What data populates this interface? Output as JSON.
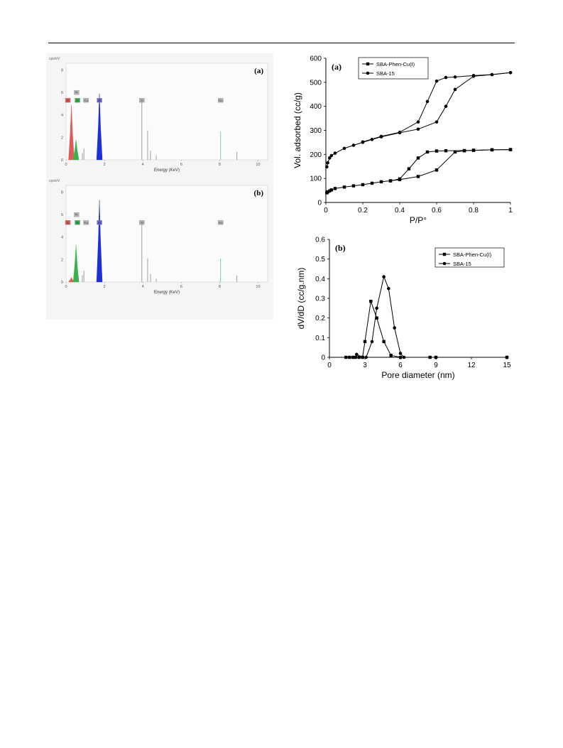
{
  "eds": [
    {
      "label": "(a)",
      "unit": "cps/eV",
      "yticks": [
        "0",
        "2",
        "4",
        "6",
        "8"
      ],
      "xticks": [
        "0",
        "2",
        "4",
        "6",
        "8",
        "10"
      ],
      "xlabel": "Energy (KeV)",
      "element_tags": [
        {
          "text": "C",
          "color": "#e05a5a",
          "energy": 0.28
        },
        {
          "text": "O",
          "color": "#37b24d",
          "energy": 0.52
        },
        {
          "text": "Cu",
          "color": "#bdbdbd",
          "energy": 0.93
        },
        {
          "text": "Si",
          "color": "#6b6bd6",
          "energy": 1.74
        },
        {
          "text": "N",
          "color": "#bdbdbd",
          "energy": 0.5
        },
        {
          "text": "Cl",
          "color": "#bdbdbd",
          "energy": 3.95
        },
        {
          "text": "Cu",
          "color": "#bdbdbd",
          "energy": 8.05
        }
      ],
      "peaks": [
        {
          "energy": 0.28,
          "height": 4.9,
          "color": "#e05a5a"
        },
        {
          "energy": 0.52,
          "height": 1.8,
          "color": "#37b24d"
        },
        {
          "energy": 1.74,
          "height": 5.9,
          "color": "#1f2fd6"
        },
        {
          "energy": 0.93,
          "height": 1.0,
          "color": "#888888"
        },
        {
          "energy": 0.85,
          "height": 0.6,
          "color": "#888888"
        },
        {
          "energy": 3.95,
          "height": 5.4,
          "color": "#888888"
        },
        {
          "energy": 4.25,
          "height": 2.6,
          "color": "#888888"
        },
        {
          "energy": 4.4,
          "height": 0.8,
          "color": "#888888"
        },
        {
          "energy": 4.7,
          "height": 0.4,
          "color": "#888888"
        },
        {
          "energy": 8.05,
          "height": 2.5,
          "color": "#48c9b0"
        },
        {
          "energy": 8.9,
          "height": 0.7,
          "color": "#888888"
        }
      ]
    },
    {
      "label": "(b)",
      "unit": "cps/eV",
      "yticks": [
        "0",
        "2",
        "4",
        "6",
        "8"
      ],
      "xticks": [
        "0",
        "2",
        "4",
        "6",
        "8",
        "10"
      ],
      "xlabel": "Energy (KeV)",
      "element_tags": [
        {
          "text": "C",
          "color": "#e05a5a",
          "energy": 0.28
        },
        {
          "text": "O",
          "color": "#37b24d",
          "energy": 0.52
        },
        {
          "text": "Cu",
          "color": "#bdbdbd",
          "energy": 0.93
        },
        {
          "text": "Si",
          "color": "#6b6bd6",
          "energy": 1.74
        },
        {
          "text": "N",
          "color": "#bdbdbd",
          "energy": 0.5
        },
        {
          "text": "Cl",
          "color": "#bdbdbd",
          "energy": 3.95
        },
        {
          "text": "Cu",
          "color": "#bdbdbd",
          "energy": 8.05
        }
      ],
      "peaks": [
        {
          "energy": 0.28,
          "height": 0.4,
          "color": "#e05a5a"
        },
        {
          "energy": 0.52,
          "height": 3.3,
          "color": "#37b24d"
        },
        {
          "energy": 1.74,
          "height": 7.3,
          "color": "#1f2fd6"
        },
        {
          "energy": 0.93,
          "height": 1.0,
          "color": "#888888"
        },
        {
          "energy": 0.85,
          "height": 0.6,
          "color": "#888888"
        },
        {
          "energy": 3.95,
          "height": 5.3,
          "color": "#888888"
        },
        {
          "energy": 4.25,
          "height": 2.1,
          "color": "#888888"
        },
        {
          "energy": 4.4,
          "height": 0.7,
          "color": "#888888"
        },
        {
          "energy": 4.7,
          "height": 0.3,
          "color": "#888888"
        },
        {
          "energy": 8.05,
          "height": 2.1,
          "color": "#48c9b0"
        },
        {
          "energy": 8.9,
          "height": 0.6,
          "color": "#888888"
        }
      ]
    }
  ],
  "chart_data": [
    {
      "type": "line",
      "label": "(a)",
      "xlabel": "P/P°",
      "ylabel": "Vol. adsorbed (cc/g)",
      "xlim": [
        0,
        1
      ],
      "ylim": [
        0,
        600
      ],
      "xticks": [
        "0",
        "0.2",
        "0.4",
        "0.6",
        "0.8",
        "1"
      ],
      "yticks": [
        "0",
        "100",
        "200",
        "300",
        "400",
        "500",
        "600"
      ],
      "legend_position": "top-left",
      "series": [
        {
          "name": "SBA-Phen-Cu(I)",
          "marker": "square",
          "adsorption": [
            [
              0.005,
              40
            ],
            [
              0.01,
              44
            ],
            [
              0.02,
              48
            ],
            [
              0.03,
              52
            ],
            [
              0.05,
              58
            ],
            [
              0.1,
              64
            ],
            [
              0.15,
              69
            ],
            [
              0.2,
              74
            ],
            [
              0.25,
              80
            ],
            [
              0.3,
              86
            ],
            [
              0.35,
              90
            ],
            [
              0.4,
              95
            ],
            [
              0.5,
              108
            ],
            [
              0.6,
              135
            ],
            [
              0.7,
              210
            ],
            [
              0.75,
              215
            ],
            [
              0.8,
              217
            ],
            [
              0.9,
              219
            ],
            [
              1.0,
              220
            ]
          ],
          "desorption": [
            [
              1.0,
              220
            ],
            [
              0.9,
              219
            ],
            [
              0.8,
              217
            ],
            [
              0.75,
              216
            ],
            [
              0.65,
              215
            ],
            [
              0.6,
              214
            ],
            [
              0.55,
              210
            ],
            [
              0.5,
              185
            ],
            [
              0.45,
              140
            ],
            [
              0.4,
              98
            ],
            [
              0.35,
              90
            ]
          ]
        },
        {
          "name": "SBA-15",
          "marker": "circle",
          "adsorption": [
            [
              0.005,
              148
            ],
            [
              0.01,
              165
            ],
            [
              0.02,
              185
            ],
            [
              0.03,
              195
            ],
            [
              0.05,
              205
            ],
            [
              0.1,
              225
            ],
            [
              0.15,
              238
            ],
            [
              0.2,
              250
            ],
            [
              0.25,
              262
            ],
            [
              0.3,
              273
            ],
            [
              0.4,
              290
            ],
            [
              0.5,
              305
            ],
            [
              0.6,
              335
            ],
            [
              0.65,
              400
            ],
            [
              0.7,
              470
            ],
            [
              0.8,
              525
            ],
            [
              0.9,
              532
            ],
            [
              1.0,
              540
            ]
          ],
          "desorption": [
            [
              1.0,
              540
            ],
            [
              0.9,
              532
            ],
            [
              0.8,
              528
            ],
            [
              0.7,
              522
            ],
            [
              0.65,
              520
            ],
            [
              0.6,
              505
            ],
            [
              0.55,
              420
            ],
            [
              0.5,
              335
            ],
            [
              0.4,
              292
            ],
            [
              0.3,
              275
            ],
            [
              0.2,
              252
            ]
          ]
        }
      ]
    },
    {
      "type": "line",
      "label": "(b)",
      "xlabel": "Pore diameter (nm)",
      "ylabel": "dV/dD (cc/g.nm)",
      "xlim": [
        0,
        15
      ],
      "ylim": [
        0,
        0.6
      ],
      "xticks": [
        "0",
        "3",
        "6",
        "9",
        "12",
        "15"
      ],
      "yticks": [
        "0",
        "0.1",
        "0.2",
        "0.3",
        "0.4",
        "0.5",
        "0.6"
      ],
      "legend_position": "top-right",
      "series": [
        {
          "name": "SBA-Phen-Cu(I)",
          "marker": "square",
          "points": [
            [
              1.4,
              0
            ],
            [
              1.7,
              0
            ],
            [
              2.0,
              0
            ],
            [
              2.2,
              0
            ],
            [
              2.5,
              0
            ],
            [
              2.8,
              0
            ],
            [
              3.0,
              0.08
            ],
            [
              3.5,
              0.285
            ],
            [
              4.0,
              0.2
            ],
            [
              4.6,
              0.08
            ],
            [
              5.2,
              0.01
            ],
            [
              6.0,
              0
            ],
            [
              8.5,
              0
            ],
            [
              9.0,
              0
            ],
            [
              15,
              0
            ]
          ]
        },
        {
          "name": "SBA-15",
          "marker": "circle",
          "points": [
            [
              2.3,
              0.015
            ],
            [
              2.8,
              0
            ],
            [
              3.1,
              0
            ],
            [
              3.6,
              0.08
            ],
            [
              4.0,
              0.25
            ],
            [
              4.6,
              0.41
            ],
            [
              5.0,
              0.35
            ],
            [
              5.5,
              0.15
            ],
            [
              6.0,
              0.02
            ],
            [
              6.3,
              0
            ],
            [
              9.0,
              0
            ],
            [
              15,
              0
            ]
          ]
        }
      ]
    }
  ]
}
